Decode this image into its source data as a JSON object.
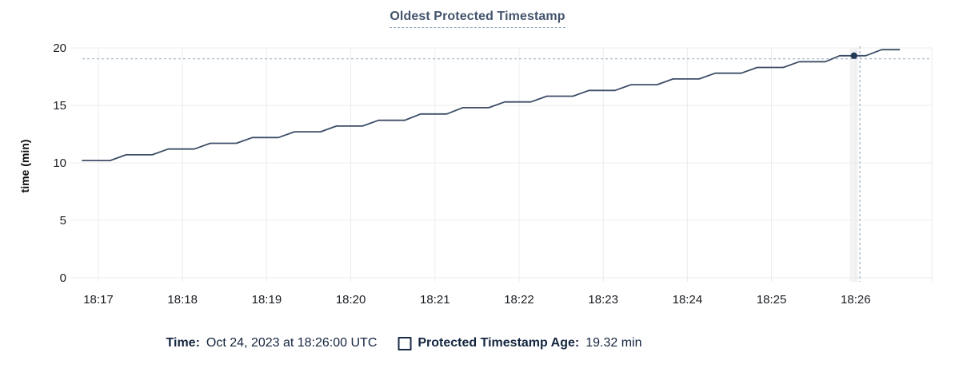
{
  "header": {
    "title": "Oldest Protected Timestamp"
  },
  "colors": {
    "background": "#ffffff",
    "title": "#44546e",
    "title_underline": "#93a5bd",
    "line": "#3d4d66",
    "dot": "#233a57",
    "grid": "#ececec",
    "hover_band": "#ededed",
    "crosshair": "#9db1c2",
    "tick_text": "#1a1d21",
    "legend_text": "#14253f"
  },
  "chart_data": {
    "type": "line",
    "title": "Oldest Protected Timestamp",
    "xlabel": "",
    "ylabel": "time (min)",
    "ylim": [
      0,
      20
    ],
    "yticks": [
      0,
      5,
      10,
      15,
      20
    ],
    "x_tick_labels": [
      "18:17",
      "18:18",
      "18:19",
      "18:20",
      "18:21",
      "18:22",
      "18:23",
      "18:24",
      "18:25",
      "18:26"
    ],
    "x_unit": "minutes offset from 18:17",
    "x_domain": [
      -0.29,
      9.9
    ],
    "grid": true,
    "legend_position": "bottom",
    "series": [
      {
        "name": "Protected Timestamp Age",
        "unit": "min",
        "points": [
          [
            -0.19,
            10.2
          ],
          [
            0.14,
            10.2
          ],
          [
            0.33,
            10.7
          ],
          [
            0.64,
            10.7
          ],
          [
            0.83,
            11.2
          ],
          [
            1.14,
            11.2
          ],
          [
            1.33,
            11.7
          ],
          [
            1.64,
            11.7
          ],
          [
            1.83,
            12.2
          ],
          [
            2.14,
            12.2
          ],
          [
            2.33,
            12.7
          ],
          [
            2.64,
            12.7
          ],
          [
            2.83,
            13.2
          ],
          [
            3.14,
            13.2
          ],
          [
            3.33,
            13.7
          ],
          [
            3.64,
            13.7
          ],
          [
            3.83,
            14.25
          ],
          [
            4.14,
            14.25
          ],
          [
            4.33,
            14.8
          ],
          [
            4.64,
            14.8
          ],
          [
            4.83,
            15.3
          ],
          [
            5.14,
            15.3
          ],
          [
            5.33,
            15.8
          ],
          [
            5.64,
            15.8
          ],
          [
            5.83,
            16.3
          ],
          [
            6.14,
            16.3
          ],
          [
            6.33,
            16.8
          ],
          [
            6.64,
            16.8
          ],
          [
            6.83,
            17.3
          ],
          [
            7.14,
            17.3
          ],
          [
            7.33,
            17.8
          ],
          [
            7.64,
            17.8
          ],
          [
            7.83,
            18.3
          ],
          [
            8.14,
            18.3
          ],
          [
            8.33,
            18.8
          ],
          [
            8.64,
            18.8
          ],
          [
            8.81,
            19.32
          ],
          [
            9.12,
            19.32
          ],
          [
            9.31,
            19.85
          ],
          [
            9.52,
            19.85
          ]
        ]
      }
    ],
    "hover": {
      "time": "Oct 24, 2023 at 18:26:00 UTC",
      "point_x_offset_min": 8.98,
      "point_value": 19.32,
      "crosshair_x_offset_min": 9.05,
      "crosshair_value": 19.05
    }
  },
  "hover_legend": {
    "time_label": "Time:",
    "time_value": "Oct 24, 2023 at 18:26:00 UTC",
    "series_swatch": "empty-square",
    "series_label": "Protected Timestamp Age:",
    "series_value": "19.32 min"
  }
}
